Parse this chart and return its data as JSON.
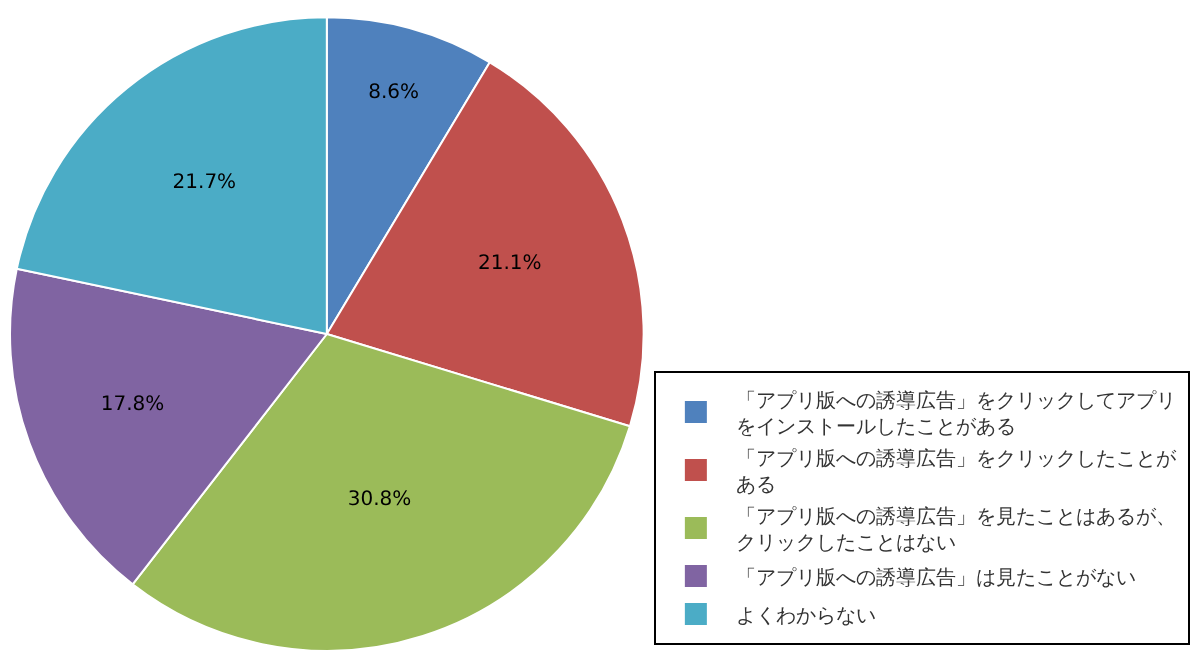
{
  "chart_data": {
    "type": "pie",
    "categories": [
      "「アプリ版への誘導広告」をクリックしてアプリをインストールしたことがある",
      "「アプリ版への誘導広告」をクリックしたことがある",
      "「アプリ版への誘導広告」を見たことはあるが、クリックしたことはない",
      "「アプリ版への誘導広告」は見たことがない",
      "よくわからない"
    ],
    "values": [
      8.6,
      21.1,
      30.8,
      17.8,
      21.7
    ],
    "value_labels": [
      "8.6%",
      "21.1%",
      "30.8%",
      "17.8%",
      "21.7%"
    ],
    "colors": [
      "#4f81bd",
      "#c0504d",
      "#9bbb59",
      "#8064a2",
      "#4bacc6"
    ],
    "legend": "right"
  }
}
